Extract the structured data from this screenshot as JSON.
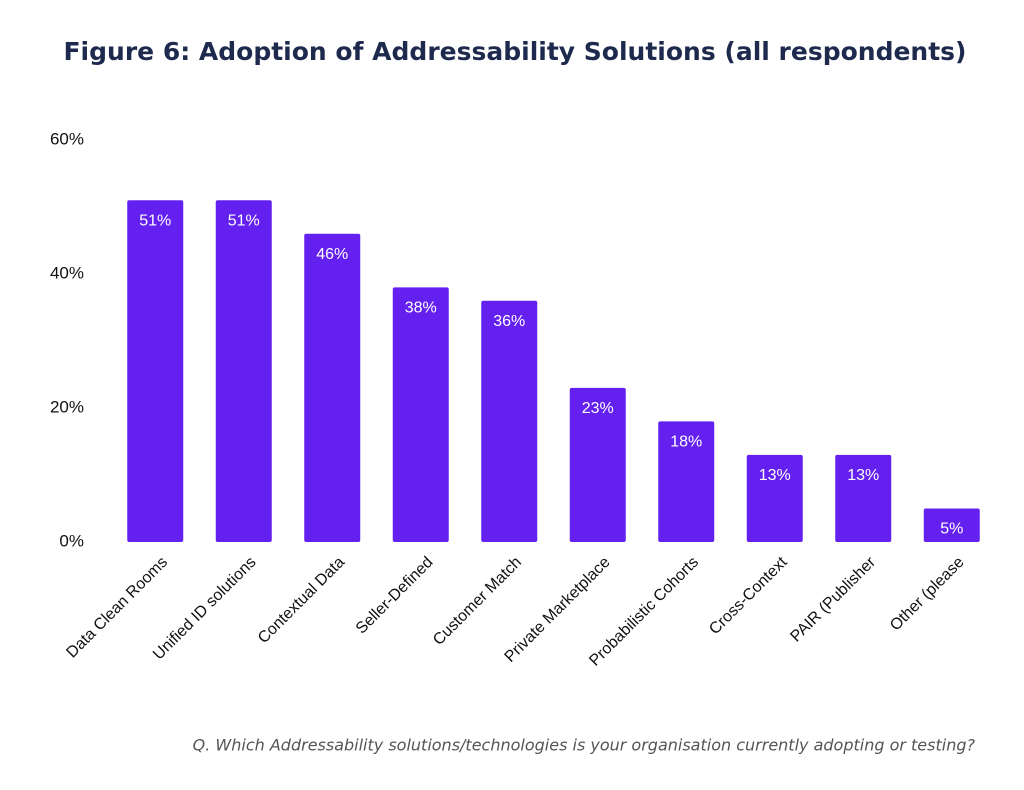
{
  "chart_data": {
    "type": "bar",
    "title": "Figure 6: Adoption of Addressability Solutions (all respondents)",
    "caption": "Q. Which Addressability solutions/technologies is your organisation currently adopting or testing?",
    "categories": [
      "Data Clean Rooms",
      "Unified ID solutions",
      "Contextual Data",
      "Seller-Defined",
      "Customer Match",
      "Private Marketplace",
      "Probabilistic Cohorts",
      "Cross-Context",
      "PAIR (Publisher",
      "Other (please"
    ],
    "values": [
      51,
      51,
      46,
      38,
      36,
      23,
      18,
      13,
      13,
      5
    ],
    "value_labels": [
      "51%",
      "51%",
      "46%",
      "38%",
      "36%",
      "23%",
      "18%",
      "13%",
      "13%",
      "5%"
    ],
    "color": "#6320ee",
    "ylim": [
      0,
      60
    ],
    "yticks": [
      {
        "value": 0,
        "label": "0%"
      },
      {
        "value": 20,
        "label": "20%"
      },
      {
        "value": 40,
        "label": "40%"
      },
      {
        "value": 60,
        "label": "60%"
      }
    ],
    "grid": false
  }
}
